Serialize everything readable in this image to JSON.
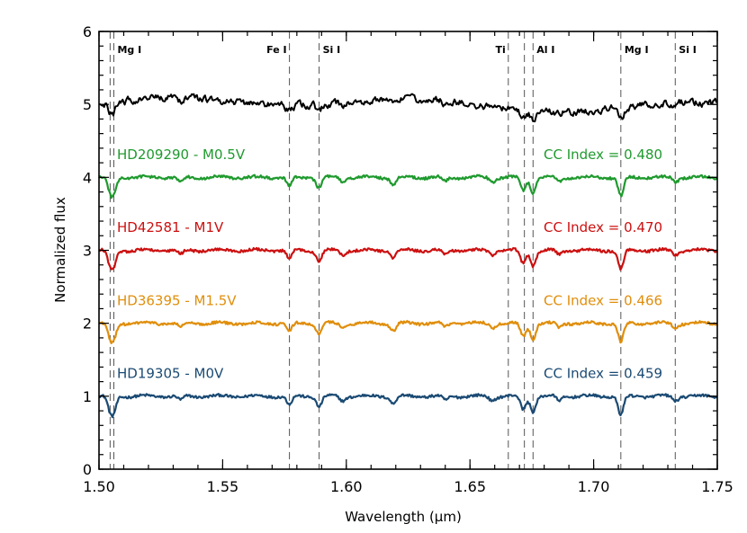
{
  "chart_data": {
    "type": "line",
    "xlabel": "Wavelength (μm)",
    "ylabel": "Normalized flux",
    "xlim": [
      1.5,
      1.75
    ],
    "ylim": [
      0,
      6
    ],
    "xticks": [
      1.5,
      1.55,
      1.6,
      1.65,
      1.7,
      1.75
    ],
    "xtick_labels": [
      "1.50",
      "1.55",
      "1.60",
      "1.65",
      "1.70",
      "1.75"
    ],
    "yticks": [
      0,
      1,
      2,
      3,
      4,
      5,
      6
    ],
    "ytick_labels": [
      "0",
      "1",
      "2",
      "3",
      "4",
      "5",
      "6"
    ],
    "line_markers": [
      {
        "x": 1.5045,
        "label": ""
      },
      {
        "x": 1.506,
        "label": "Mg I"
      },
      {
        "x": 1.577,
        "label": "Fe I"
      },
      {
        "x": 1.589,
        "label": "Si I"
      },
      {
        "x": 1.6655,
        "label": "Ti"
      },
      {
        "x": 1.672,
        "label": ""
      },
      {
        "x": 1.6755,
        "label": "Al I"
      },
      {
        "x": 1.711,
        "label": "Mg I"
      },
      {
        "x": 1.733,
        "label": "Si I"
      }
    ],
    "absorption_features": [
      {
        "x": 1.5045,
        "depth": 0.18
      },
      {
        "x": 1.506,
        "depth": 0.18
      },
      {
        "x": 1.533,
        "depth": 0.06
      },
      {
        "x": 1.577,
        "depth": 0.12
      },
      {
        "x": 1.589,
        "depth": 0.14
      },
      {
        "x": 1.5985,
        "depth": 0.06
      },
      {
        "x": 1.619,
        "depth": 0.1
      },
      {
        "x": 1.64,
        "depth": 0.06
      },
      {
        "x": 1.659,
        "depth": 0.06
      },
      {
        "x": 1.6715,
        "depth": 0.18
      },
      {
        "x": 1.6755,
        "depth": 0.2
      },
      {
        "x": 1.686,
        "depth": 0.06
      },
      {
        "x": 1.711,
        "depth": 0.26
      },
      {
        "x": 1.733,
        "depth": 0.06
      }
    ],
    "series": [
      {
        "name": "HD19305 - M0V",
        "cc_index": "CC Index = 0.459",
        "offset": 1,
        "color": "#1a4a73",
        "noise": 0.018
      },
      {
        "name": "HD36395 - M1.5V",
        "cc_index": "CC Index = 0.466",
        "offset": 2,
        "color": "#e08e0b",
        "noise": 0.018
      },
      {
        "name": "HD42581 - M1V",
        "cc_index": "CC Index = 0.470",
        "offset": 3,
        "color": "#cc1010",
        "noise": 0.018
      },
      {
        "name": "HD209290 - M0.5V",
        "cc_index": "CC Index = 0.480",
        "offset": 4,
        "color": "#1f9a2e",
        "noise": 0.018
      },
      {
        "name": "",
        "cc_index": "",
        "offset": 5,
        "color": "#000000",
        "noise": 0.04
      }
    ]
  }
}
